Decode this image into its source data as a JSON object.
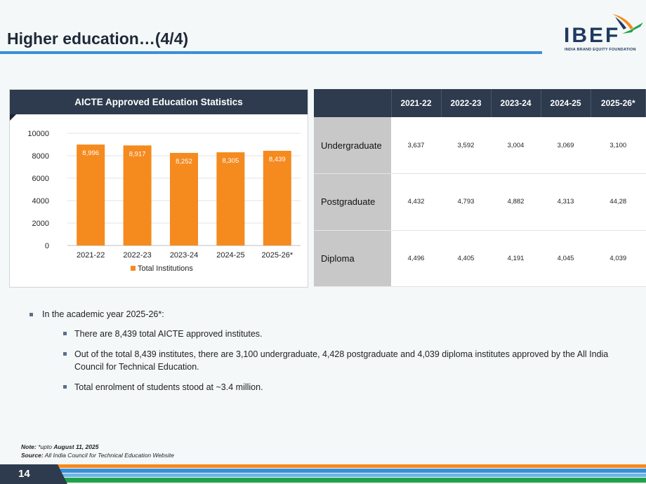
{
  "header": {
    "title": "Higher education…(4/4)",
    "logo_text": "IBEF",
    "logo_subtitle": "INDIA BRAND EQUITY FOUNDATION"
  },
  "chart_panel": {
    "title": "AICTE Approved Education Statistics"
  },
  "chart_data": {
    "type": "bar",
    "title": "AICTE Approved Education Statistics",
    "categories": [
      "2021-22",
      "2022-23",
      "2023-24",
      "2024-25",
      "2025-26*"
    ],
    "series": [
      {
        "name": "Total Institutions",
        "values": [
          8996,
          8917,
          8252,
          8305,
          8439
        ]
      }
    ],
    "data_labels": [
      "8,996",
      "8,917",
      "8,252",
      "8,305",
      "8,439"
    ],
    "y_ticks": [
      "0",
      "2000",
      "4000",
      "6000",
      "8000",
      "10000"
    ],
    "ylim": [
      0,
      10000
    ],
    "grid": true,
    "legend": "bottom",
    "bar_color": "#f58a1f"
  },
  "table": {
    "headers": [
      "",
      "2021-22",
      "2022-23",
      "2023-24",
      "2024-25",
      "2025-26*"
    ],
    "rows": [
      {
        "label": "Undergraduate",
        "values": [
          "3,637",
          "3,592",
          "3,004",
          "3,069",
          "3,100"
        ]
      },
      {
        "label": "Postgraduate",
        "values": [
          "4,432",
          "4,793",
          "4,882",
          "4,313",
          "44,28"
        ]
      },
      {
        "label": "Diploma",
        "values": [
          "4,496",
          "4,405",
          "4,191",
          "4,045",
          "4,039"
        ]
      }
    ]
  },
  "bullets": {
    "main": "In the academic year 2025-26*:",
    "sub": [
      "There are 8,439 total AICTE approved institutes.",
      "Out of the total 8,439 institutes, there are 3,100 undergraduate, 4,428 postgraduate and 4,039 diploma institutes approved by the All India Council for Technical Education.",
      "Total enrolment of students stood at ~3.4 million."
    ]
  },
  "notes": {
    "note_label": "Note:",
    "note_prefix": "*upto",
    "note_date": "August 11, 2025",
    "source_label": "Source:",
    "source_text": "All India Council for Technical Education Website"
  },
  "footer": {
    "page_number": "14"
  },
  "colors": {
    "navy": "#2e3b4e",
    "accent_blue": "#3a8fd8",
    "orange": "#f58a1f",
    "green": "#1fa34a"
  }
}
